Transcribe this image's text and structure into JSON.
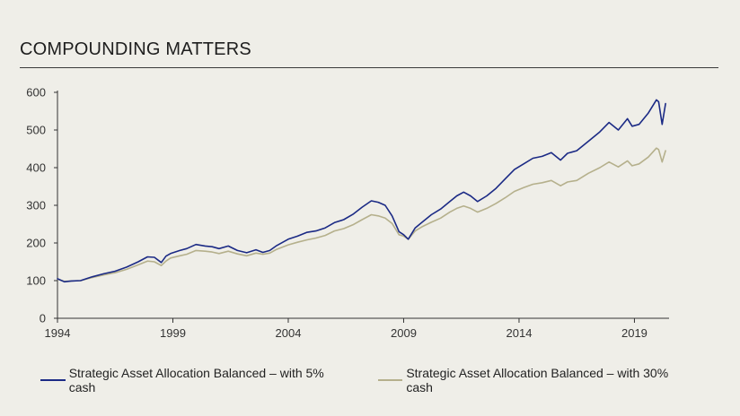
{
  "title": "COMPOUNDING MATTERS",
  "colors": {
    "series1": "#1b2a85",
    "series2": "#b5b08c",
    "axis": "#333333",
    "background": "#efeee8"
  },
  "chart_data": {
    "type": "line",
    "title": "COMPOUNDING MATTERS",
    "xlabel": "",
    "ylabel": "",
    "xlim": [
      1994,
      2020.5
    ],
    "ylim": [
      0,
      600
    ],
    "grid": false,
    "legend_position": "bottom",
    "x_ticks": [
      "1994",
      "1999",
      "2004",
      "2009",
      "2014",
      "2019"
    ],
    "y_ticks": [
      "0",
      "100",
      "200",
      "300",
      "400",
      "500",
      "600"
    ],
    "series": [
      {
        "name": "Strategic Asset Allocation Balanced – with 5% cash",
        "color": "#1b2a85",
        "x": [
          1994.0,
          1994.3,
          1994.6,
          1995.0,
          1995.5,
          1996.0,
          1996.5,
          1997.0,
          1997.5,
          1997.9,
          1998.2,
          1998.5,
          1998.7,
          1998.9,
          1999.3,
          1999.6,
          2000.0,
          2000.4,
          2000.7,
          2001.0,
          2001.4,
          2001.8,
          2002.2,
          2002.6,
          2002.9,
          2003.2,
          2003.5,
          2004.0,
          2004.4,
          2004.8,
          2005.2,
          2005.6,
          2006.0,
          2006.4,
          2006.8,
          2007.2,
          2007.6,
          2007.9,
          2008.2,
          2008.5,
          2008.8,
          2009.0,
          2009.2,
          2009.5,
          2009.8,
          2010.2,
          2010.6,
          2011.0,
          2011.3,
          2011.6,
          2011.9,
          2012.2,
          2012.6,
          2013.0,
          2013.4,
          2013.8,
          2014.2,
          2014.6,
          2015.0,
          2015.4,
          2015.8,
          2016.1,
          2016.5,
          2017.0,
          2017.5,
          2017.9,
          2018.3,
          2018.7,
          2018.9,
          2019.2,
          2019.6,
          2019.95,
          2020.05,
          2020.2,
          2020.35
        ],
        "y": [
          105,
          97,
          99,
          100,
          110,
          118,
          125,
          136,
          150,
          163,
          162,
          148,
          165,
          172,
          180,
          185,
          196,
          192,
          190,
          185,
          192,
          180,
          174,
          182,
          175,
          180,
          193,
          210,
          218,
          228,
          232,
          240,
          254,
          262,
          276,
          295,
          312,
          308,
          300,
          272,
          230,
          222,
          210,
          240,
          255,
          275,
          290,
          310,
          325,
          335,
          325,
          310,
          325,
          345,
          370,
          395,
          410,
          425,
          430,
          440,
          420,
          438,
          445,
          470,
          495,
          520,
          500,
          530,
          510,
          515,
          545,
          580,
          575,
          515,
          570
        ]
      },
      {
        "name": "Strategic Asset Allocation Balanced – with 30% cash",
        "color": "#b5b08c",
        "x": [
          1994.0,
          1994.3,
          1994.6,
          1995.0,
          1995.5,
          1996.0,
          1996.5,
          1997.0,
          1997.5,
          1997.9,
          1998.2,
          1998.5,
          1998.7,
          1998.9,
          1999.3,
          1999.6,
          2000.0,
          2000.4,
          2000.7,
          2001.0,
          2001.4,
          2001.8,
          2002.2,
          2002.6,
          2002.9,
          2003.2,
          2003.5,
          2004.0,
          2004.4,
          2004.8,
          2005.2,
          2005.6,
          2006.0,
          2006.4,
          2006.8,
          2007.2,
          2007.6,
          2007.9,
          2008.2,
          2008.5,
          2008.8,
          2009.0,
          2009.2,
          2009.5,
          2009.8,
          2010.2,
          2010.6,
          2011.0,
          2011.3,
          2011.6,
          2011.9,
          2012.2,
          2012.6,
          2013.0,
          2013.4,
          2013.8,
          2014.2,
          2014.6,
          2015.0,
          2015.4,
          2015.8,
          2016.1,
          2016.5,
          2017.0,
          2017.5,
          2017.9,
          2018.3,
          2018.7,
          2018.9,
          2019.2,
          2019.6,
          2019.95,
          2020.05,
          2020.2,
          2020.35
        ],
        "y": [
          104,
          98,
          99,
          100,
          108,
          115,
          121,
          130,
          142,
          152,
          150,
          140,
          152,
          160,
          166,
          170,
          180,
          178,
          176,
          172,
          178,
          171,
          166,
          173,
          170,
          173,
          183,
          195,
          202,
          208,
          213,
          220,
          232,
          238,
          248,
          262,
          275,
          272,
          266,
          252,
          222,
          218,
          210,
          232,
          243,
          255,
          266,
          282,
          292,
          298,
          292,
          282,
          292,
          305,
          320,
          337,
          347,
          356,
          360,
          366,
          352,
          362,
          366,
          385,
          400,
          415,
          402,
          418,
          405,
          410,
          428,
          452,
          448,
          415,
          445
        ]
      }
    ]
  }
}
